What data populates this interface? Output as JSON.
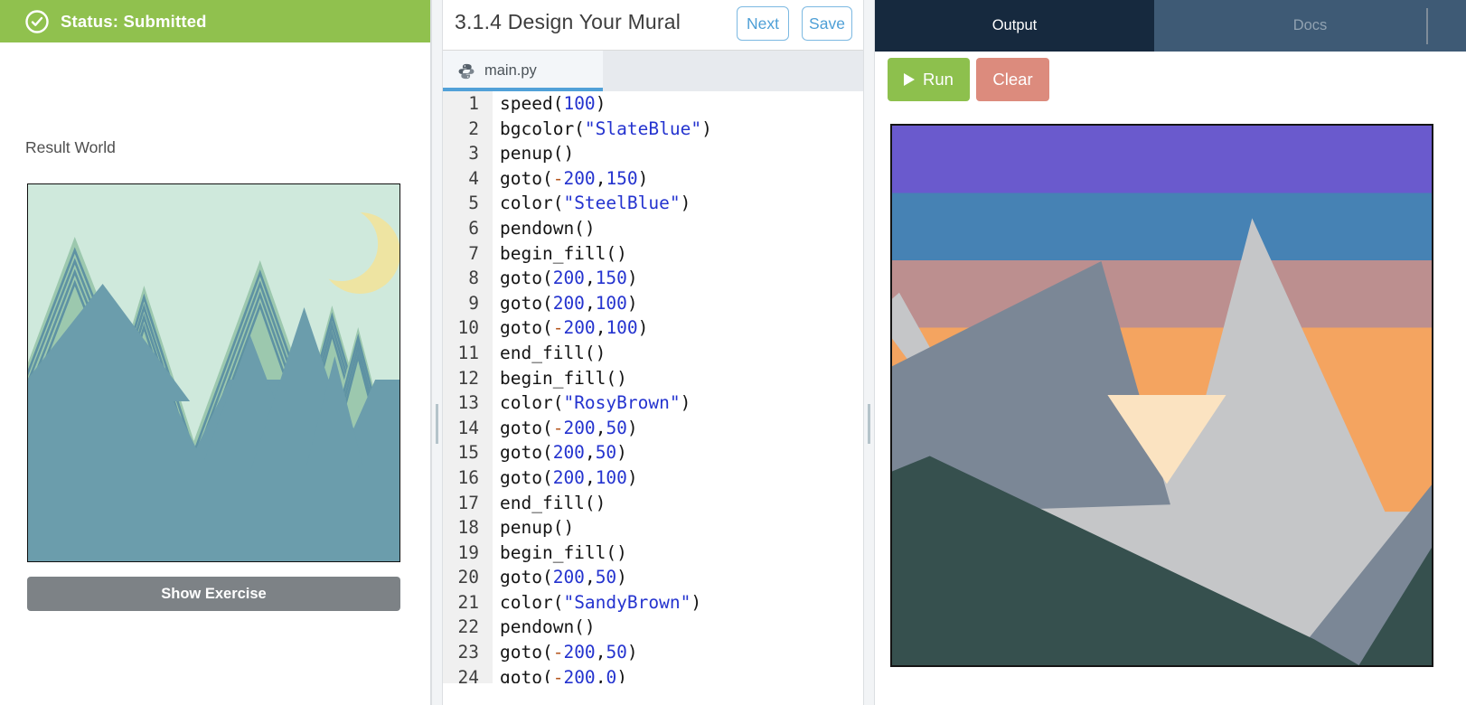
{
  "left": {
    "status_label": "Status: Submitted",
    "result_world_label": "Result World",
    "show_exercise_label": "Show Exercise"
  },
  "editor": {
    "title": "3.1.4 Design Your Mural",
    "next_label": "Next",
    "save_label": "Save",
    "tab_label": "main.py",
    "lines": [
      [
        [
          "speed(",
          "p"
        ],
        [
          "100",
          "n"
        ],
        [
          ")",
          "p"
        ]
      ],
      [
        [
          "bgcolor(",
          "p"
        ],
        [
          "\"SlateBlue\"",
          "s"
        ],
        [
          ")",
          "p"
        ]
      ],
      [
        [
          "penup()",
          "p"
        ]
      ],
      [
        [
          "goto(",
          "p"
        ],
        [
          "-",
          "o"
        ],
        [
          "200",
          "n"
        ],
        [
          ",",
          "p"
        ],
        [
          "150",
          "n"
        ],
        [
          ")",
          "p"
        ]
      ],
      [
        [
          "color(",
          "p"
        ],
        [
          "\"SteelBlue\"",
          "s"
        ],
        [
          ")",
          "p"
        ]
      ],
      [
        [
          "pendown()",
          "p"
        ]
      ],
      [
        [
          "begin_fill()",
          "p"
        ]
      ],
      [
        [
          "goto(",
          "p"
        ],
        [
          "200",
          "n"
        ],
        [
          ",",
          "p"
        ],
        [
          "150",
          "n"
        ],
        [
          ")",
          "p"
        ]
      ],
      [
        [
          "goto(",
          "p"
        ],
        [
          "200",
          "n"
        ],
        [
          ",",
          "p"
        ],
        [
          "100",
          "n"
        ],
        [
          ")",
          "p"
        ]
      ],
      [
        [
          "goto(",
          "p"
        ],
        [
          "-",
          "o"
        ],
        [
          "200",
          "n"
        ],
        [
          ",",
          "p"
        ],
        [
          "100",
          "n"
        ],
        [
          ")",
          "p"
        ]
      ],
      [
        [
          "end_fill()",
          "p"
        ]
      ],
      [
        [
          "begin_fill()",
          "p"
        ]
      ],
      [
        [
          "color(",
          "p"
        ],
        [
          "\"RosyBrown\"",
          "s"
        ],
        [
          ")",
          "p"
        ]
      ],
      [
        [
          "goto(",
          "p"
        ],
        [
          "-",
          "o"
        ],
        [
          "200",
          "n"
        ],
        [
          ",",
          "p"
        ],
        [
          "50",
          "n"
        ],
        [
          ")",
          "p"
        ]
      ],
      [
        [
          "goto(",
          "p"
        ],
        [
          "200",
          "n"
        ],
        [
          ",",
          "p"
        ],
        [
          "50",
          "n"
        ],
        [
          ")",
          "p"
        ]
      ],
      [
        [
          "goto(",
          "p"
        ],
        [
          "200",
          "n"
        ],
        [
          ",",
          "p"
        ],
        [
          "100",
          "n"
        ],
        [
          ")",
          "p"
        ]
      ],
      [
        [
          "end_fill()",
          "p"
        ]
      ],
      [
        [
          "penup()",
          "p"
        ]
      ],
      [
        [
          "begin_fill()",
          "p"
        ]
      ],
      [
        [
          "goto(",
          "p"
        ],
        [
          "200",
          "n"
        ],
        [
          ",",
          "p"
        ],
        [
          "50",
          "n"
        ],
        [
          ")",
          "p"
        ]
      ],
      [
        [
          "color(",
          "p"
        ],
        [
          "\"SandyBrown\"",
          "s"
        ],
        [
          ")",
          "p"
        ]
      ],
      [
        [
          "pendown()",
          "p"
        ]
      ],
      [
        [
          "goto(",
          "p"
        ],
        [
          "-",
          "o"
        ],
        [
          "200",
          "n"
        ],
        [
          ",",
          "p"
        ],
        [
          "50",
          "n"
        ],
        [
          ")",
          "p"
        ]
      ],
      [
        [
          "goto(",
          "p"
        ],
        [
          "-",
          "o"
        ],
        [
          "200",
          "n"
        ],
        [
          ",",
          "p"
        ],
        [
          "0",
          "n"
        ],
        [
          ")",
          "p"
        ]
      ]
    ]
  },
  "output": {
    "tab_output": "Output",
    "tab_docs": "Docs",
    "run_label": "Run",
    "clear_label": "Clear"
  },
  "colors": {
    "status_green": "#90C14E",
    "accent_blue": "#4E9FD6",
    "tab_underline_blue": "#51A1D8",
    "output_tab_dark": "#16293E",
    "docs_tab_slate": "#3E5A75",
    "run_green": "#8DC04D",
    "clear_salmon": "#DC8B7D",
    "code_number": "#2433CF",
    "code_string": "#2433CF",
    "code_operator": "#B4551D",
    "mural_palette": {
      "SlateBlue": "#6A5ACD",
      "SteelBlue": "#4682B4",
      "RosyBrown": "#BC8F8F",
      "SandyBrown": "#F4A460",
      "wheat_valley": "#FBE3C1",
      "silver_mountain": "#C5C6C8",
      "slate_mountain": "#7B8796",
      "dark_foreground": "#36504E"
    },
    "result_scene_palette": {
      "sky_mint": "#CFE9DC",
      "mountain_green": "#9CC8AE",
      "mountain_teal": "#6B9DAC",
      "stripe_teal": "#5E92A3",
      "moon_yellow": "#EEE4A2"
    }
  }
}
